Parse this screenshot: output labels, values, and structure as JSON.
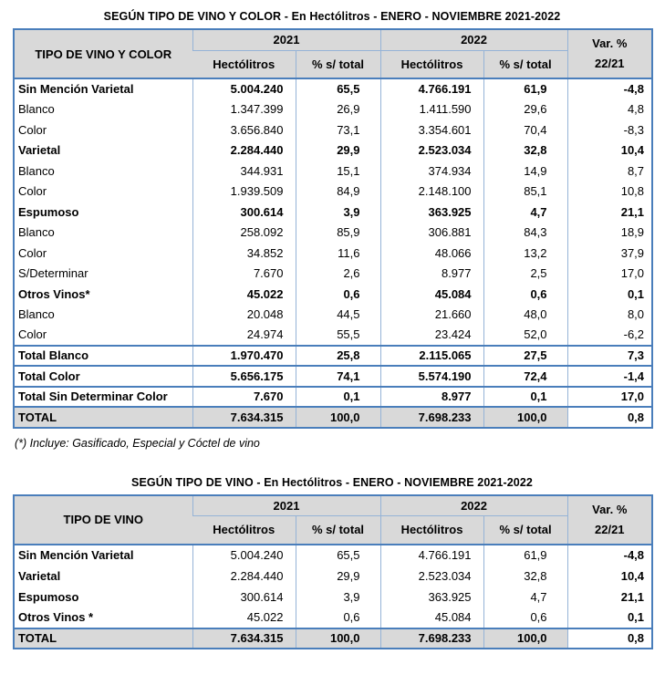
{
  "page": {
    "footnote": "(*) Incluye: Gasificado, Especial y Cóctel de vino"
  },
  "colors": {
    "border_outer": "#4A7EBB",
    "border_inner": "#95B3D7",
    "header_bg": "#D9D9D9",
    "total_row_bg": "#D9D9D9"
  },
  "tables": [
    {
      "title": "SEGÚN TIPO DE VINO Y COLOR - En Hectólitros - ENERO - NOVIEMBRE 2021-2022",
      "label_header": "TIPO DE VINO Y COLOR",
      "year_2021": "2021",
      "year_2022": "2022",
      "hectolitros_header": "Hectólitros",
      "pct_header": "% s/ total",
      "var_header_line1": "Var. %",
      "var_header_line2": "22/21",
      "rows": [
        {
          "label": "Sin Mención Varietal",
          "hl_2021": "5.004.240",
          "pct_2021": "65,5",
          "hl_2022": "4.766.191",
          "pct_2022": "61,9",
          "var": "-4,8",
          "style": "group"
        },
        {
          "label": "Blanco",
          "hl_2021": "1.347.399",
          "pct_2021": "26,9",
          "hl_2022": "1.411.590",
          "pct_2022": "29,6",
          "var": "4,8",
          "style": "sub"
        },
        {
          "label": "Color",
          "hl_2021": "3.656.840",
          "pct_2021": "73,1",
          "hl_2022": "3.354.601",
          "pct_2022": "70,4",
          "var": "-8,3",
          "style": "sub"
        },
        {
          "label": "Varietal",
          "hl_2021": "2.284.440",
          "pct_2021": "29,9",
          "hl_2022": "2.523.034",
          "pct_2022": "32,8",
          "var": "10,4",
          "style": "group"
        },
        {
          "label": "Blanco",
          "hl_2021": "344.931",
          "pct_2021": "15,1",
          "hl_2022": "374.934",
          "pct_2022": "14,9",
          "var": "8,7",
          "style": "sub"
        },
        {
          "label": "Color",
          "hl_2021": "1.939.509",
          "pct_2021": "84,9",
          "hl_2022": "2.148.100",
          "pct_2022": "85,1",
          "var": "10,8",
          "style": "sub"
        },
        {
          "label": "Espumoso",
          "hl_2021": "300.614",
          "pct_2021": "3,9",
          "hl_2022": "363.925",
          "pct_2022": "4,7",
          "var": "21,1",
          "style": "group"
        },
        {
          "label": "Blanco",
          "hl_2021": "258.092",
          "pct_2021": "85,9",
          "hl_2022": "306.881",
          "pct_2022": "84,3",
          "var": "18,9",
          "style": "sub"
        },
        {
          "label": "Color",
          "hl_2021": "34.852",
          "pct_2021": "11,6",
          "hl_2022": "48.066",
          "pct_2022": "13,2",
          "var": "37,9",
          "style": "sub"
        },
        {
          "label": "S/Determinar",
          "hl_2021": "7.670",
          "pct_2021": "2,6",
          "hl_2022": "8.977",
          "pct_2022": "2,5",
          "var": "17,0",
          "style": "sub"
        },
        {
          "label": "Otros Vinos*",
          "hl_2021": "45.022",
          "pct_2021": "0,6",
          "hl_2022": "45.084",
          "pct_2022": "0,6",
          "var": "0,1",
          "style": "group"
        },
        {
          "label": "Blanco",
          "hl_2021": "20.048",
          "pct_2021": "44,5",
          "hl_2022": "21.660",
          "pct_2022": "48,0",
          "var": "8,0",
          "style": "sub"
        },
        {
          "label": "Color",
          "hl_2021": "24.974",
          "pct_2021": "55,5",
          "hl_2022": "23.424",
          "pct_2022": "52,0",
          "var": "-6,2",
          "style": "sub"
        },
        {
          "label": "Total Blanco",
          "hl_2021": "1.970.470",
          "pct_2021": "25,8",
          "hl_2022": "2.115.065",
          "pct_2022": "27,5",
          "var": "7,3",
          "style": "total"
        },
        {
          "label": "Total Color",
          "hl_2021": "5.656.175",
          "pct_2021": "74,1",
          "hl_2022": "5.574.190",
          "pct_2022": "72,4",
          "var": "-1,4",
          "style": "total"
        },
        {
          "label": "Total Sin Determinar Color",
          "hl_2021": "7.670",
          "pct_2021": "0,1",
          "hl_2022": "8.977",
          "pct_2022": "0,1",
          "var": "17,0",
          "style": "total"
        },
        {
          "label": "TOTAL",
          "hl_2021": "7.634.315",
          "pct_2021": "100,0",
          "hl_2022": "7.698.233",
          "pct_2022": "100,0",
          "var": "0,8",
          "style": "grand"
        }
      ]
    },
    {
      "title": "SEGÚN TIPO DE VINO - En Hectólitros - ENERO - NOVIEMBRE 2021-2022",
      "label_header": "TIPO DE VINO",
      "year_2021": "2021",
      "year_2022": "2022",
      "hectolitros_header": "Hectólitros",
      "pct_header": "% s/ total",
      "var_header_line1": "Var. %",
      "var_header_line2": "22/21",
      "rows": [
        {
          "label": "Sin Mención Varietal",
          "hl_2021": "5.004.240",
          "pct_2021": "65,5",
          "hl_2022": "4.766.191",
          "pct_2022": "61,9",
          "var": "-4,8",
          "style": "t2"
        },
        {
          "label": "Varietal",
          "hl_2021": "2.284.440",
          "pct_2021": "29,9",
          "hl_2022": "2.523.034",
          "pct_2022": "32,8",
          "var": "10,4",
          "style": "t2"
        },
        {
          "label": "Espumoso",
          "hl_2021": "300.614",
          "pct_2021": "3,9",
          "hl_2022": "363.925",
          "pct_2022": "4,7",
          "var": "21,1",
          "style": "t2"
        },
        {
          "label": "Otros Vinos *",
          "hl_2021": "45.022",
          "pct_2021": "0,6",
          "hl_2022": "45.084",
          "pct_2022": "0,6",
          "var": "0,1",
          "style": "t2"
        },
        {
          "label": "TOTAL",
          "hl_2021": "7.634.315",
          "pct_2021": "100,0",
          "hl_2022": "7.698.233",
          "pct_2022": "100,0",
          "var": "0,8",
          "style": "grand"
        }
      ]
    }
  ]
}
